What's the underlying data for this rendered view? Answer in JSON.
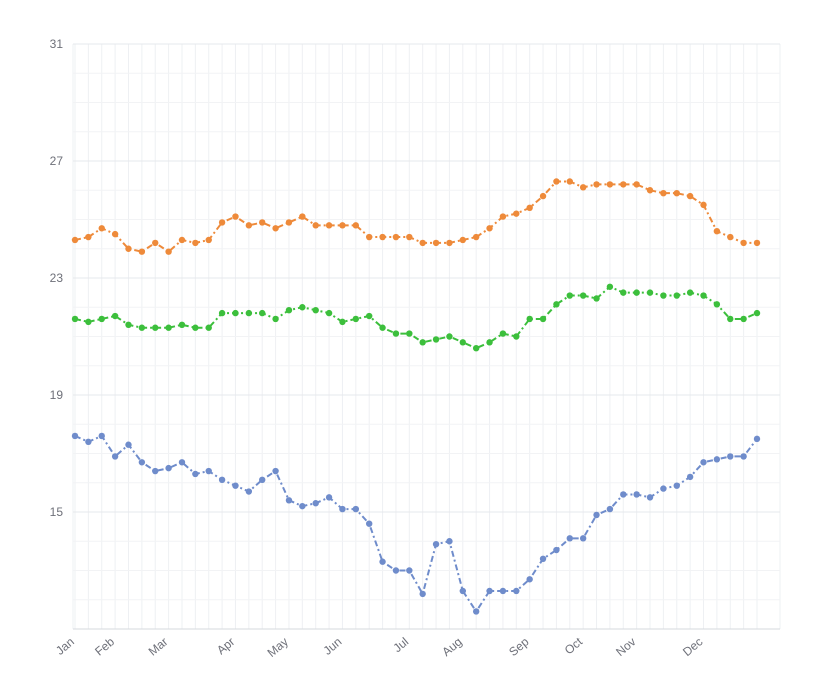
{
  "chart_data": {
    "type": "line",
    "title": "",
    "xlabel": "",
    "ylabel": "",
    "ylim": [
      11,
      31
    ],
    "yticks": [
      15,
      19,
      23,
      27,
      31
    ],
    "grid": true,
    "x_points": 52,
    "month_labels": [
      {
        "label": "Jan",
        "index": 0
      },
      {
        "label": "Feb",
        "index": 3
      },
      {
        "label": "Mar",
        "index": 7
      },
      {
        "label": "Apr",
        "index": 12
      },
      {
        "label": "May",
        "index": 16
      },
      {
        "label": "Jun",
        "index": 20
      },
      {
        "label": "Jul",
        "index": 25
      },
      {
        "label": "Aug",
        "index": 29
      },
      {
        "label": "Sep",
        "index": 34
      },
      {
        "label": "Oct",
        "index": 38
      },
      {
        "label": "Nov",
        "index": 42
      },
      {
        "label": "Dec",
        "index": 47
      }
    ],
    "series": [
      {
        "color": "#ee8a3a",
        "values": [
          24.3,
          24.4,
          24.7,
          24.5,
          24.0,
          23.9,
          24.2,
          23.9,
          24.3,
          24.2,
          24.3,
          24.9,
          25.1,
          24.8,
          24.9,
          24.7,
          24.9,
          25.1,
          24.8,
          24.8,
          24.8,
          24.8,
          24.4,
          24.4,
          24.4,
          24.4,
          24.2,
          24.2,
          24.2,
          24.3,
          24.4,
          24.7,
          25.1,
          25.2,
          25.4,
          25.8,
          26.3,
          26.3,
          26.1,
          26.2,
          26.2,
          26.2,
          26.2,
          26.0,
          25.9,
          25.9,
          25.8,
          25.5,
          24.6,
          24.4,
          24.2,
          24.2
        ]
      },
      {
        "color": "#3cbf3c",
        "values": [
          21.6,
          21.5,
          21.6,
          21.7,
          21.4,
          21.3,
          21.3,
          21.3,
          21.4,
          21.3,
          21.3,
          21.8,
          21.8,
          21.8,
          21.8,
          21.6,
          21.9,
          22.0,
          21.9,
          21.8,
          21.5,
          21.6,
          21.7,
          21.3,
          21.1,
          21.1,
          20.8,
          20.9,
          21.0,
          20.8,
          20.6,
          20.8,
          21.1,
          21.0,
          21.6,
          21.6,
          22.1,
          22.4,
          22.4,
          22.3,
          22.7,
          22.5,
          22.5,
          22.5,
          22.4,
          22.4,
          22.5,
          22.4,
          22.1,
          21.6,
          21.6,
          21.8
        ]
      },
      {
        "color": "#6f8ccb",
        "values": [
          17.6,
          17.4,
          17.6,
          16.9,
          17.3,
          16.7,
          16.4,
          16.5,
          16.7,
          16.3,
          16.4,
          16.1,
          15.9,
          15.7,
          16.1,
          16.4,
          15.4,
          15.2,
          15.3,
          15.5,
          15.1,
          15.1,
          14.6,
          13.3,
          13.0,
          13.0,
          12.2,
          13.9,
          14.0,
          12.3,
          11.6,
          12.3,
          12.3,
          12.3,
          12.7,
          13.4,
          13.7,
          14.1,
          14.1,
          14.9,
          15.1,
          15.6,
          15.6,
          15.5,
          15.8,
          15.9,
          16.2,
          16.7,
          16.8,
          16.9,
          16.9,
          17.5
        ]
      }
    ]
  }
}
